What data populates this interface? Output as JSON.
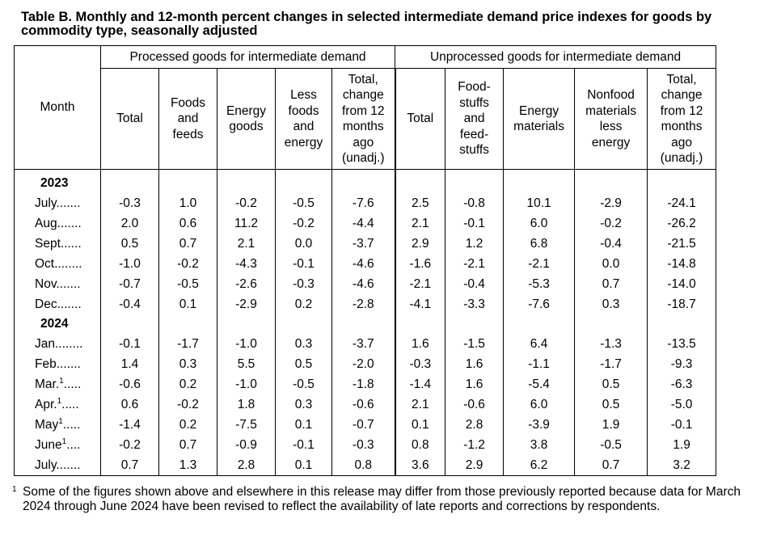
{
  "title": "Table B. Monthly and 12-month percent changes in selected intermediate demand price indexes for goods by commodity type, seasonally adjusted",
  "groups": {
    "processed": "Processed goods for intermediate demand",
    "unprocessed": "Unprocessed goods for intermediate demand"
  },
  "columns": {
    "month": "Month",
    "p_total": "Total",
    "p_foods": [
      "Foods",
      "and",
      "feeds"
    ],
    "p_energy": [
      "Energy",
      "goods"
    ],
    "p_less": [
      "Less",
      "foods",
      "and",
      "energy"
    ],
    "p_change": [
      "Total,",
      "change",
      "from 12",
      "months",
      "ago",
      "(unadj.)"
    ],
    "u_total": "Total",
    "u_food": [
      "Food-",
      "stuffs",
      "and",
      "feed-",
      "stuffs"
    ],
    "u_energy": [
      "Energy",
      "materials"
    ],
    "u_nonfood": [
      "Nonfood",
      "materials",
      "less",
      "energy"
    ],
    "u_change": [
      "Total,",
      "change",
      "from 12",
      "months",
      "ago",
      "(unadj.)"
    ]
  },
  "years": [
    "2023",
    "2024"
  ],
  "rows2023": [
    {
      "month": "July",
      "dots": ".......",
      "fn": "",
      "values": [
        "-0.3",
        "1.0",
        "-0.2",
        "-0.5",
        "-7.6",
        "2.5",
        "-0.8",
        "10.1",
        "-2.9",
        "-24.1"
      ]
    },
    {
      "month": "Aug",
      "dots": ".......",
      "fn": "",
      "values": [
        "2.0",
        "0.6",
        "11.2",
        "-0.2",
        "-4.4",
        "2.1",
        "-0.1",
        "6.0",
        "-0.2",
        "-26.2"
      ]
    },
    {
      "month": "Sept",
      "dots": "......",
      "fn": "",
      "values": [
        "0.5",
        "0.7",
        "2.1",
        "0.0",
        "-3.7",
        "2.9",
        "1.2",
        "6.8",
        "-0.4",
        "-21.5"
      ]
    },
    {
      "month": "Oct",
      "dots": "........",
      "fn": "",
      "values": [
        "-1.0",
        "-0.2",
        "-4.3",
        "-0.1",
        "-4.6",
        "-1.6",
        "-2.1",
        "-2.1",
        "0.0",
        "-14.8"
      ]
    },
    {
      "month": "Nov",
      "dots": ".......",
      "fn": "",
      "values": [
        "-0.7",
        "-0.5",
        "-2.6",
        "-0.3",
        "-4.6",
        "-2.1",
        "-0.4",
        "-5.3",
        "0.7",
        "-14.0"
      ]
    },
    {
      "month": "Dec",
      "dots": ".......",
      "fn": "",
      "values": [
        "-0.4",
        "0.1",
        "-2.9",
        "0.2",
        "-2.8",
        "-4.1",
        "-3.3",
        "-7.6",
        "0.3",
        "-18.7"
      ]
    }
  ],
  "rows2024": [
    {
      "month": "Jan",
      "dots": "........",
      "fn": "",
      "values": [
        "-0.1",
        "-1.7",
        "-1.0",
        "0.3",
        "-3.7",
        "1.6",
        "-1.5",
        "6.4",
        "-1.3",
        "-13.5"
      ]
    },
    {
      "month": "Feb",
      "dots": ".......",
      "fn": "",
      "values": [
        "1.4",
        "0.3",
        "5.5",
        "0.5",
        "-2.0",
        "-0.3",
        "1.6",
        "-1.1",
        "-1.7",
        "-9.3"
      ]
    },
    {
      "month": "Mar.",
      "dots": ".....",
      "fn": "1",
      "values": [
        "-0.6",
        "0.2",
        "-1.0",
        "-0.5",
        "-1.8",
        "-1.4",
        "1.6",
        "-5.4",
        "0.5",
        "-6.3"
      ]
    },
    {
      "month": "Apr.",
      "dots": ".....",
      "fn": "1",
      "values": [
        "0.6",
        "-0.2",
        "1.8",
        "0.3",
        "-0.6",
        "2.1",
        "-0.6",
        "6.0",
        "0.5",
        "-5.0"
      ]
    },
    {
      "month": "May",
      "dots": ".....",
      "fn": "1",
      "values": [
        "-1.4",
        "0.2",
        "-7.5",
        "0.1",
        "-0.7",
        "0.1",
        "2.8",
        "-3.9",
        "1.9",
        "-0.1"
      ]
    },
    {
      "month": "June",
      "dots": "....",
      "fn": "1",
      "values": [
        "-0.2",
        "0.7",
        "-0.9",
        "-0.1",
        "-0.3",
        "0.8",
        "-1.2",
        "3.8",
        "-0.5",
        "1.9"
      ]
    },
    {
      "month": "July",
      "dots": ".......",
      "fn": "",
      "values": [
        "0.7",
        "1.3",
        "2.8",
        "0.1",
        "0.8",
        "3.6",
        "2.9",
        "6.2",
        "0.7",
        "3.2"
      ]
    }
  ],
  "footnote": {
    "mark": "1",
    "text": "Some of the figures shown above and elsewhere in this release may differ from those previously reported because data for March 2024 through June 2024 have been revised to reflect the availability of late reports and corrections by respondents."
  }
}
